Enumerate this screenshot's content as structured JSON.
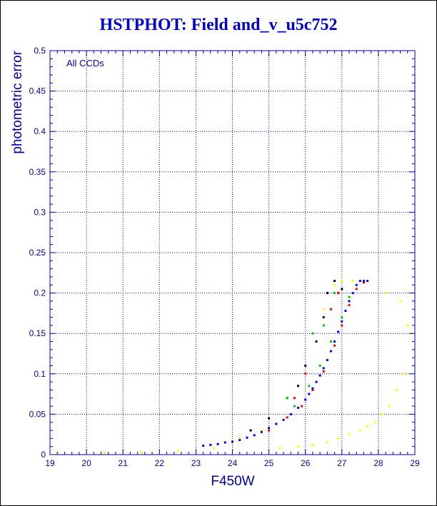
{
  "chart_data": {
    "type": "scatter",
    "title": "HSTPHOT: Field and_v_u5c752",
    "xlabel": "F450W",
    "ylabel": "photometric error",
    "annotation": "All CCDs",
    "xlim": [
      19,
      29
    ],
    "ylim": [
      0,
      0.5
    ],
    "xticks": [
      "19",
      "20",
      "21",
      "22",
      "23",
      "24",
      "25",
      "26",
      "27",
      "28",
      "29"
    ],
    "yticks": [
      "0",
      "0.05",
      "0.1",
      "0.15",
      "0.2",
      "0.25",
      "0.3",
      "0.35",
      "0.4",
      "0.45",
      "0.5"
    ],
    "grid": true,
    "series_colors": {
      "black": "#000000",
      "red": "#ff0000",
      "green": "#00cc00",
      "blue": "#0000ff",
      "yellow": "#ffff00"
    },
    "series": [
      {
        "color": "blue",
        "points": [
          [
            23.2,
            0.011
          ],
          [
            23.4,
            0.012
          ],
          [
            23.6,
            0.013
          ],
          [
            23.8,
            0.015
          ],
          [
            24.0,
            0.016
          ],
          [
            24.2,
            0.018
          ],
          [
            24.4,
            0.021
          ],
          [
            24.6,
            0.024
          ],
          [
            24.8,
            0.028
          ],
          [
            25.0,
            0.033
          ],
          [
            25.2,
            0.038
          ],
          [
            25.4,
            0.043
          ],
          [
            25.6,
            0.05
          ],
          [
            25.8,
            0.058
          ],
          [
            26.0,
            0.068
          ],
          [
            26.1,
            0.075
          ],
          [
            26.2,
            0.082
          ],
          [
            26.3,
            0.09
          ],
          [
            26.4,
            0.098
          ],
          [
            26.5,
            0.107
          ],
          [
            26.6,
            0.117
          ],
          [
            26.7,
            0.128
          ],
          [
            26.8,
            0.14
          ],
          [
            26.9,
            0.152
          ],
          [
            27.0,
            0.165
          ],
          [
            27.1,
            0.178
          ],
          [
            27.2,
            0.19
          ],
          [
            27.3,
            0.2
          ],
          [
            27.4,
            0.21
          ],
          [
            27.5,
            0.215
          ],
          [
            27.6,
            0.215
          ],
          [
            27.7,
            0.215
          ]
        ]
      },
      {
        "color": "red",
        "points": [
          [
            25.0,
            0.03
          ],
          [
            25.5,
            0.046
          ],
          [
            25.9,
            0.06
          ],
          [
            26.2,
            0.08
          ],
          [
            26.5,
            0.103
          ],
          [
            26.8,
            0.135
          ],
          [
            27.0,
            0.16
          ],
          [
            27.2,
            0.185
          ],
          [
            27.4,
            0.205
          ],
          [
            27.6,
            0.213
          ],
          [
            26.7,
            0.18
          ],
          [
            26.9,
            0.2
          ],
          [
            25.7,
            0.07
          ],
          [
            26.0,
            0.1
          ]
        ]
      },
      {
        "color": "green",
        "points": [
          [
            25.2,
            0.038
          ],
          [
            25.7,
            0.06
          ],
          [
            26.1,
            0.085
          ],
          [
            26.4,
            0.11
          ],
          [
            26.7,
            0.14
          ],
          [
            27.0,
            0.17
          ],
          [
            27.2,
            0.195
          ],
          [
            26.5,
            0.16
          ],
          [
            26.8,
            0.2
          ],
          [
            26.2,
            0.15
          ],
          [
            25.5,
            0.07
          ]
        ]
      },
      {
        "color": "black",
        "points": [
          [
            24.5,
            0.03
          ],
          [
            25.0,
            0.045
          ],
          [
            25.5,
            0.07
          ],
          [
            25.8,
            0.085
          ],
          [
            26.0,
            0.11
          ],
          [
            26.3,
            0.14
          ],
          [
            26.5,
            0.17
          ],
          [
            26.6,
            0.2
          ],
          [
            26.8,
            0.215
          ],
          [
            27.0,
            0.205
          ]
        ]
      },
      {
        "color": "yellow",
        "points": [
          [
            19.2,
            0.002
          ],
          [
            20.5,
            0.002
          ],
          [
            21.5,
            0.003
          ],
          [
            22.5,
            0.005
          ],
          [
            23.5,
            0.008
          ],
          [
            24.2,
            0.02
          ],
          [
            24.8,
            0.03
          ],
          [
            25.3,
            0.008
          ],
          [
            25.8,
            0.01
          ],
          [
            26.2,
            0.012
          ],
          [
            26.6,
            0.015
          ],
          [
            26.9,
            0.02
          ],
          [
            27.2,
            0.025
          ],
          [
            27.5,
            0.03
          ],
          [
            27.7,
            0.035
          ],
          [
            27.9,
            0.04
          ],
          [
            28.1,
            0.05
          ],
          [
            28.3,
            0.06
          ],
          [
            28.5,
            0.08
          ],
          [
            28.7,
            0.1
          ],
          [
            28.9,
            0.15
          ],
          [
            26.5,
            0.18
          ],
          [
            26.8,
            0.21
          ],
          [
            27.0,
            0.215
          ],
          [
            27.3,
            0.215
          ],
          [
            28.2,
            0.2
          ],
          [
            28.6,
            0.19
          ],
          [
            28.8,
            0.16
          ]
        ]
      }
    ]
  }
}
